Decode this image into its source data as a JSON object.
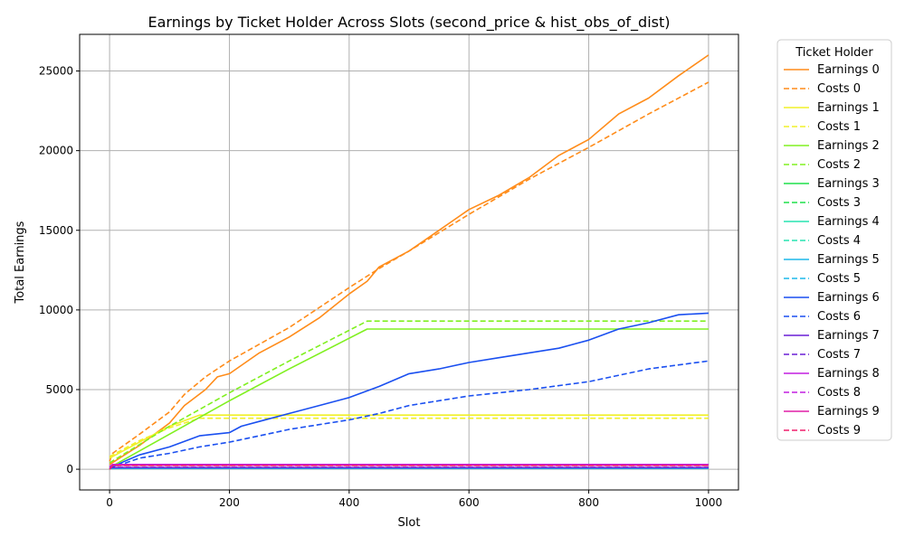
{
  "chart_data": {
    "type": "line",
    "title": "Earnings by Ticket Holder Across Slots (second_price & hist_obs_of_dist)",
    "xlabel": "Slot",
    "ylabel": "Total Earnings",
    "xlim": [
      -50,
      1050
    ],
    "ylim": [
      -1300,
      27300
    ],
    "xticks": [
      0,
      200,
      400,
      600,
      800,
      1000
    ],
    "yticks": [
      0,
      5000,
      10000,
      15000,
      20000,
      25000
    ],
    "grid": true,
    "legend": {
      "title": "Ticket Holder",
      "placement": "outside-right"
    },
    "series": [
      {
        "name": "Earnings 0",
        "color": "#ff8c1a",
        "dash": "solid",
        "points": [
          [
            0,
            300
          ],
          [
            50,
            1500
          ],
          [
            100,
            2900
          ],
          [
            125,
            4000
          ],
          [
            160,
            5000
          ],
          [
            180,
            5800
          ],
          [
            200,
            6000
          ],
          [
            250,
            7300
          ],
          [
            300,
            8300
          ],
          [
            350,
            9500
          ],
          [
            400,
            11000
          ],
          [
            430,
            11800
          ],
          [
            450,
            12700
          ],
          [
            500,
            13700
          ],
          [
            550,
            15000
          ],
          [
            600,
            16300
          ],
          [
            650,
            17200
          ],
          [
            700,
            18300
          ],
          [
            750,
            19700
          ],
          [
            800,
            20700
          ],
          [
            850,
            22300
          ],
          [
            900,
            23300
          ],
          [
            950,
            24700
          ],
          [
            1000,
            26000
          ]
        ]
      },
      {
        "name": "Costs 0",
        "color": "#ff8c1a",
        "dash": "dashed",
        "points": [
          [
            0,
            500
          ],
          [
            5,
            1000
          ],
          [
            50,
            2200
          ],
          [
            100,
            3600
          ],
          [
            125,
            4700
          ],
          [
            160,
            5800
          ],
          [
            200,
            6800
          ],
          [
            300,
            8900
          ],
          [
            400,
            11400
          ],
          [
            450,
            12600
          ],
          [
            500,
            13700
          ],
          [
            600,
            16000
          ],
          [
            700,
            18200
          ],
          [
            800,
            20200
          ],
          [
            900,
            22300
          ],
          [
            1000,
            24300
          ]
        ]
      },
      {
        "name": "Earnings 1",
        "color": "#f0f028",
        "dash": "solid",
        "points": [
          [
            0,
            700
          ],
          [
            50,
            1700
          ],
          [
            100,
            2700
          ],
          [
            150,
            3400
          ],
          [
            200,
            3400
          ],
          [
            1000,
            3400
          ]
        ]
      },
      {
        "name": "Costs 1",
        "color": "#f0f028",
        "dash": "dashed",
        "points": [
          [
            0,
            800
          ],
          [
            50,
            1800
          ],
          [
            100,
            2600
          ],
          [
            150,
            3200
          ],
          [
            200,
            3200
          ],
          [
            1000,
            3200
          ]
        ]
      },
      {
        "name": "Earnings 2",
        "color": "#80f020",
        "dash": "solid",
        "points": [
          [
            0,
            100
          ],
          [
            100,
            2200
          ],
          [
            200,
            4300
          ],
          [
            300,
            6300
          ],
          [
            430,
            8800
          ],
          [
            1000,
            8800
          ]
        ]
      },
      {
        "name": "Costs 2",
        "color": "#80f020",
        "dash": "dashed",
        "points": [
          [
            0,
            400
          ],
          [
            100,
            2700
          ],
          [
            200,
            4800
          ],
          [
            300,
            6800
          ],
          [
            430,
            9300
          ],
          [
            1000,
            9300
          ]
        ]
      },
      {
        "name": "Earnings 3",
        "color": "#1fe04a",
        "dash": "solid",
        "points": [
          [
            0,
            50
          ],
          [
            1000,
            50
          ]
        ]
      },
      {
        "name": "Costs 3",
        "color": "#1fe04a",
        "dash": "dashed",
        "points": [
          [
            0,
            50
          ],
          [
            1000,
            50
          ]
        ]
      },
      {
        "name": "Earnings 4",
        "color": "#27e3b0",
        "dash": "solid",
        "points": [
          [
            0,
            50
          ],
          [
            1000,
            50
          ]
        ]
      },
      {
        "name": "Costs 4",
        "color": "#27e3b0",
        "dash": "dashed",
        "points": [
          [
            0,
            50
          ],
          [
            1000,
            50
          ]
        ]
      },
      {
        "name": "Earnings 5",
        "color": "#1db8ea",
        "dash": "solid",
        "points": [
          [
            0,
            50
          ],
          [
            1000,
            50
          ]
        ]
      },
      {
        "name": "Costs 5",
        "color": "#1db8ea",
        "dash": "dashed",
        "points": [
          [
            0,
            50
          ],
          [
            1000,
            50
          ]
        ]
      },
      {
        "name": "Earnings 6",
        "color": "#1a4ff0",
        "dash": "solid",
        "points": [
          [
            0,
            50
          ],
          [
            25,
            500
          ],
          [
            50,
            900
          ],
          [
            100,
            1400
          ],
          [
            150,
            2100
          ],
          [
            200,
            2300
          ],
          [
            220,
            2700
          ],
          [
            250,
            3000
          ],
          [
            300,
            3500
          ],
          [
            350,
            4000
          ],
          [
            400,
            4500
          ],
          [
            450,
            5200
          ],
          [
            500,
            6000
          ],
          [
            550,
            6300
          ],
          [
            600,
            6700
          ],
          [
            650,
            7000
          ],
          [
            700,
            7300
          ],
          [
            750,
            7600
          ],
          [
            800,
            8100
          ],
          [
            850,
            8800
          ],
          [
            900,
            9200
          ],
          [
            950,
            9700
          ],
          [
            1000,
            9800
          ]
        ]
      },
      {
        "name": "Costs 6",
        "color": "#1a4ff0",
        "dash": "dashed",
        "points": [
          [
            0,
            50
          ],
          [
            50,
            700
          ],
          [
            100,
            1000
          ],
          [
            150,
            1400
          ],
          [
            200,
            1700
          ],
          [
            250,
            2100
          ],
          [
            300,
            2500
          ],
          [
            350,
            2800
          ],
          [
            400,
            3100
          ],
          [
            450,
            3500
          ],
          [
            500,
            4000
          ],
          [
            600,
            4600
          ],
          [
            700,
            5000
          ],
          [
            800,
            5500
          ],
          [
            900,
            6300
          ],
          [
            1000,
            6800
          ]
        ]
      },
      {
        "name": "Earnings 7",
        "color": "#6a1fd6",
        "dash": "solid",
        "points": [
          [
            0,
            100
          ],
          [
            1000,
            100
          ]
        ]
      },
      {
        "name": "Costs 7",
        "color": "#6a1fd6",
        "dash": "dashed",
        "points": [
          [
            0,
            120
          ],
          [
            1000,
            120
          ]
        ]
      },
      {
        "name": "Earnings 8",
        "color": "#c21fe0",
        "dash": "solid",
        "points": [
          [
            0,
            150
          ],
          [
            5,
            300
          ],
          [
            1000,
            300
          ]
        ]
      },
      {
        "name": "Costs 8",
        "color": "#c21fe0",
        "dash": "dashed",
        "points": [
          [
            0,
            150
          ],
          [
            5,
            280
          ],
          [
            1000,
            280
          ]
        ]
      },
      {
        "name": "Earnings 9",
        "color": "#e01fa6",
        "dash": "solid",
        "points": [
          [
            0,
            0
          ],
          [
            5,
            250
          ],
          [
            1000,
            250
          ]
        ]
      },
      {
        "name": "Costs 9",
        "color": "#f01f6c",
        "dash": "dashed",
        "points": [
          [
            0,
            0
          ],
          [
            5,
            230
          ],
          [
            1000,
            230
          ]
        ]
      }
    ]
  }
}
